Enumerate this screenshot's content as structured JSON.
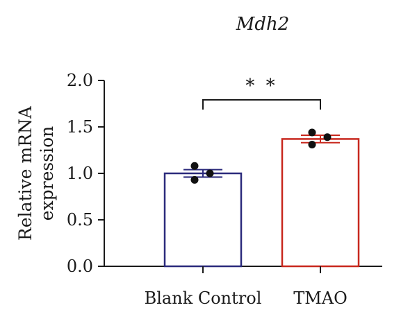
{
  "chart_data": {
    "type": "bar",
    "title": "Mdh2",
    "ylabel": [
      "Relative mRNA",
      "expression"
    ],
    "xlabel": "",
    "categories": [
      "Blank Control",
      "TMAO"
    ],
    "values": [
      1.0,
      1.37
    ],
    "errors": [
      0.04,
      0.04
    ],
    "points": [
      [
        1.08,
        0.93,
        1.0
      ],
      [
        1.44,
        1.31,
        1.39
      ]
    ],
    "bar_colors": [
      "#2b2a7c",
      "#c8281e"
    ],
    "ylim": [
      0,
      2.0
    ],
    "yticks": [
      "0.0",
      "0.5",
      "1.0",
      "1.5",
      "2.0"
    ],
    "significance": {
      "between": [
        0,
        1
      ],
      "label": "* *"
    },
    "grid": false,
    "legend": "none"
  }
}
